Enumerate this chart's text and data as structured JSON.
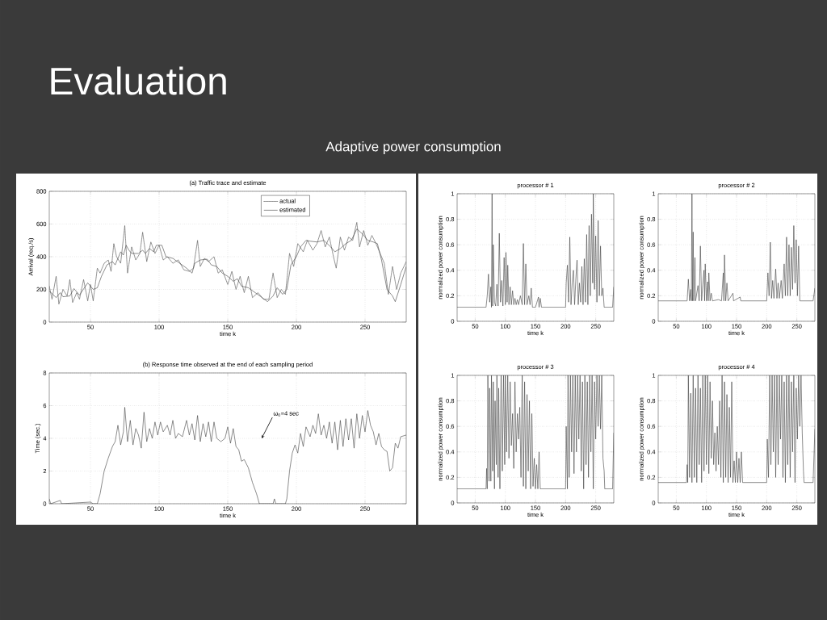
{
  "chart_data": [
    {
      "type": "line",
      "title": "(a) Traffic trace and estimate",
      "xlabel": "time k",
      "ylabel": "Arrival (req./s)",
      "annotations": [
        "Evaluation",
        "Adaptive power consumption"
      ],
      "xlim": [
        20,
        280
      ],
      "ylim": [
        0,
        800
      ],
      "xticks": [
        50,
        100,
        150,
        200,
        250
      ],
      "yticks": [
        0,
        200,
        400,
        600,
        800
      ],
      "grid": true,
      "legend": "top right",
      "series": [
        {
          "name": "actual",
          "color": "#606060",
          "line_style": "dotted",
          "x": [
            20,
            22,
            25,
            27,
            30,
            33,
            35,
            37,
            40,
            42,
            45,
            48,
            50,
            52,
            55,
            57,
            60,
            63,
            65,
            67,
            69,
            72,
            75,
            77,
            80,
            83,
            86,
            88,
            91,
            94,
            97,
            100,
            103,
            106,
            110,
            114,
            118,
            122,
            125,
            128,
            130,
            133,
            136,
            140,
            143,
            146,
            150,
            153,
            156,
            159,
            162,
            165,
            168,
            172,
            176,
            180,
            183,
            186,
            189,
            192,
            195,
            198,
            201,
            205,
            208,
            212,
            215,
            218,
            221,
            224,
            227,
            229,
            232,
            235,
            238,
            241,
            244,
            246,
            249,
            252,
            255,
            258,
            261,
            264,
            267,
            270,
            273,
            276,
            280
          ],
          "values": [
            220,
            140,
            280,
            110,
            200,
            160,
            260,
            120,
            180,
            140,
            260,
            130,
            230,
            130,
            330,
            300,
            360,
            380,
            310,
            480,
            400,
            360,
            590,
            300,
            460,
            380,
            420,
            550,
            370,
            490,
            420,
            470,
            380,
            400,
            360,
            380,
            320,
            310,
            330,
            500,
            340,
            390,
            370,
            400,
            300,
            320,
            230,
            310,
            200,
            280,
            180,
            280,
            150,
            180,
            140,
            140,
            300,
            150,
            200,
            170,
            420,
            340,
            480,
            430,
            500,
            440,
            480,
            560,
            460,
            520,
            400,
            330,
            520,
            440,
            520,
            500,
            610,
            460,
            560,
            470,
            530,
            480,
            420,
            360,
            170,
            340,
            200,
            300,
            370
          ]
        },
        {
          "name": "estimated",
          "color": "#404040",
          "line_style": "solid",
          "x": [
            20,
            25,
            28,
            30,
            35,
            38,
            42,
            48,
            52,
            55,
            58,
            62,
            66,
            68,
            72,
            74,
            76,
            78,
            80,
            85,
            88,
            90,
            93,
            96,
            98,
            102,
            105,
            110,
            115,
            120,
            124,
            126,
            130,
            135,
            138,
            142,
            146,
            150,
            154,
            157,
            160,
            165,
            170,
            175,
            179,
            183,
            186,
            190,
            193,
            196,
            200,
            203,
            207,
            210,
            215,
            220,
            225,
            228,
            232,
            236,
            240,
            244,
            248,
            252,
            256,
            259,
            262,
            266,
            270,
            272,
            276,
            280
          ],
          "values": [
            190,
            150,
            180,
            155,
            160,
            205,
            165,
            240,
            200,
            210,
            280,
            350,
            370,
            350,
            430,
            410,
            470,
            440,
            420,
            420,
            440,
            420,
            450,
            430,
            470,
            470,
            400,
            390,
            360,
            330,
            300,
            360,
            380,
            385,
            350,
            340,
            300,
            280,
            250,
            265,
            220,
            210,
            180,
            150,
            125,
            160,
            210,
            170,
            200,
            350,
            400,
            460,
            500,
            495,
            490,
            500,
            460,
            430,
            450,
            480,
            500,
            570,
            540,
            500,
            490,
            480,
            380,
            200,
            160,
            125,
            230,
            340
          ]
        }
      ]
    },
    {
      "type": "line",
      "title": "(b) Response time observed at the end of each sampling period",
      "xlabel": "time k",
      "ylabel": "Time (sec.)",
      "annotations": [
        "ω$_{0}$=4 sec"
      ],
      "xlim": [
        20,
        280
      ],
      "ylim": [
        0,
        8
      ],
      "xticks": [
        50,
        100,
        150,
        200,
        250
      ],
      "yticks": [
        0,
        2,
        4,
        6,
        8
      ],
      "grid": true,
      "color": "#404040",
      "x": [
        20,
        21,
        28,
        29,
        50,
        52,
        55,
        57,
        60,
        63,
        66,
        68,
        70,
        72,
        74,
        75,
        77,
        79,
        81,
        83,
        85,
        87,
        89,
        91,
        93,
        95,
        97,
        99,
        101,
        103,
        106,
        108,
        110,
        112,
        114,
        117,
        120,
        122,
        124,
        126,
        128,
        130,
        132,
        134,
        136,
        138,
        140,
        142,
        145,
        148,
        150,
        152,
        154,
        156,
        158,
        160,
        162,
        165,
        168,
        171,
        173,
        183,
        184,
        185,
        192,
        193,
        195,
        197,
        199,
        201,
        203,
        205,
        207,
        210,
        212,
        214,
        216,
        218,
        220,
        222,
        224,
        226,
        228,
        230,
        232,
        234,
        236,
        238,
        240,
        242,
        244,
        246,
        248,
        250,
        252,
        254,
        256,
        258,
        260,
        262,
        264,
        266,
        268,
        270,
        272,
        274,
        276,
        280
      ],
      "values": [
        0.3,
        0,
        0.2,
        0,
        0.1,
        0,
        0,
        0.6,
        2,
        2.8,
        3.5,
        3.8,
        4.8,
        3.6,
        4.4,
        5.9,
        3.8,
        5.1,
        3.6,
        4.6,
        4.2,
        3.4,
        5.6,
        3.8,
        4.6,
        4.0,
        5.0,
        4.2,
        5.0,
        4.4,
        4.8,
        4.2,
        5.1,
        4.0,
        4.3,
        4.1,
        5.1,
        4.2,
        4.9,
        3.9,
        5.4,
        3.8,
        4.9,
        4.1,
        5.0,
        3.8,
        5.0,
        4.0,
        3.8,
        4.0,
        4.7,
        3.7,
        4.6,
        3.5,
        3.3,
        2.6,
        2.7,
        2.2,
        1.3,
        0.6,
        0,
        0,
        0.3,
        0,
        0,
        0.3,
        2,
        3.1,
        3.6,
        3.1,
        4.3,
        3.5,
        4.7,
        4.1,
        4.8,
        4.3,
        5.5,
        4.2,
        4.8,
        4.0,
        5.0,
        3.7,
        5.0,
        3.3,
        5.1,
        3.5,
        5.2,
        3.9,
        5.2,
        3.4,
        5.5,
        4.0,
        5.4,
        4.4,
        5.7,
        4.8,
        4.4,
        3.6,
        4.3,
        3.5,
        3.3,
        3.2,
        2.0,
        2.2,
        3.7,
        3.4,
        4.1,
        4.2
      ]
    },
    {
      "type": "line",
      "title": "processor # 1",
      "xlabel": "time k",
      "ylabel": "normalized power consumption",
      "xlim": [
        20,
        280
      ],
      "ylim": [
        0,
        1
      ],
      "xticks": [
        50,
        100,
        150,
        200,
        250
      ],
      "yticks": [
        0,
        0.2,
        0.4,
        0.6,
        0.8,
        1
      ],
      "grid": true,
      "color": "#404040",
      "x": [
        20,
        68,
        70,
        72,
        74,
        76,
        77,
        78,
        79,
        80,
        82,
        84,
        86,
        88,
        90,
        92,
        94,
        96,
        98,
        100,
        101,
        103,
        104,
        106,
        108,
        110,
        112,
        114,
        116,
        118,
        120,
        122,
        125,
        128,
        130,
        132,
        134,
        136,
        139,
        141,
        143,
        145,
        150,
        155,
        156,
        158,
        160,
        200,
        201,
        203,
        205,
        207,
        209,
        211,
        213,
        215,
        217,
        219,
        221,
        223,
        225,
        227,
        229,
        231,
        233,
        235,
        237,
        239,
        241,
        243,
        245,
        246,
        248,
        250,
        252,
        254,
        256,
        258,
        260,
        262,
        264,
        278,
        280
      ],
      "values": [
        0.11,
        0.11,
        0.2,
        0.37,
        0.15,
        0.27,
        0.11,
        1.0,
        0.12,
        0.6,
        0.15,
        0.12,
        0.29,
        0.12,
        0.69,
        0.15,
        0.32,
        0.12,
        0.5,
        0.13,
        0.54,
        0.15,
        0.44,
        0.13,
        0.27,
        0.13,
        0.24,
        0.13,
        0.18,
        0.13,
        0.17,
        0.13,
        0.2,
        0.13,
        0.61,
        0.13,
        0.45,
        0.13,
        0.2,
        0.13,
        0.26,
        0.11,
        0.11,
        0.19,
        0.11,
        0.18,
        0.11,
        0.11,
        0.3,
        0.44,
        0.15,
        0.66,
        0.13,
        0.3,
        0.4,
        0.13,
        0.33,
        0.48,
        0.13,
        0.3,
        0.15,
        0.43,
        0.13,
        0.49,
        0.15,
        0.68,
        0.13,
        0.75,
        0.2,
        0.84,
        0.3,
        1.0,
        0.25,
        0.67,
        0.15,
        0.79,
        0.2,
        0.59,
        0.2,
        0.26,
        0.11,
        0.11,
        0.27
      ]
    },
    {
      "type": "line",
      "title": "processor # 2",
      "xlabel": "time k",
      "ylabel": "normalized power consumption",
      "xlim": [
        20,
        280
      ],
      "ylim": [
        0,
        1
      ],
      "xticks": [
        50,
        100,
        150,
        200,
        250
      ],
      "yticks": [
        0,
        0.2,
        0.4,
        0.6,
        0.8,
        1
      ],
      "grid": true,
      "color": "#404040",
      "x": [
        20,
        68,
        70,
        72,
        74,
        75,
        76,
        77,
        78,
        79,
        81,
        82,
        86,
        88,
        90,
        92,
        94,
        96,
        97,
        98,
        100,
        102,
        103,
        104,
        106,
        108,
        110,
        120,
        125,
        128,
        129,
        130,
        132,
        134,
        136,
        144,
        145,
        156,
        157,
        200,
        202,
        204,
        206,
        208,
        210,
        212,
        215,
        217,
        219,
        221,
        224,
        226,
        229,
        231,
        233,
        235,
        237,
        239,
        241,
        243,
        245,
        247,
        249,
        251,
        253,
        255,
        257,
        277,
        280
      ],
      "values": [
        0.16,
        0.16,
        0.33,
        0.16,
        0.25,
        0.16,
        1.0,
        0.16,
        0.7,
        0.16,
        0.5,
        0.16,
        0.28,
        0.16,
        0.59,
        0.16,
        0.29,
        0.4,
        0.16,
        0.45,
        0.16,
        0.31,
        0.16,
        0.38,
        0.16,
        0.22,
        0.16,
        0.17,
        0.16,
        0.38,
        0.16,
        0.52,
        0.16,
        0.3,
        0.16,
        0.22,
        0.16,
        0.19,
        0.16,
        0.16,
        0.38,
        0.2,
        0.62,
        0.18,
        0.32,
        0.18,
        0.41,
        0.18,
        0.3,
        0.18,
        0.32,
        0.18,
        0.45,
        0.2,
        0.66,
        0.2,
        0.6,
        0.2,
        0.58,
        0.25,
        0.75,
        0.3,
        0.64,
        0.2,
        0.59,
        0.16,
        0.16,
        0.16,
        0.26
      ]
    },
    {
      "type": "line",
      "title": "processor # 3",
      "xlabel": "time k",
      "ylabel": "normalized power consumption",
      "xlim": [
        20,
        280
      ],
      "ylim": [
        0,
        1
      ],
      "xticks": [
        50,
        100,
        150,
        200,
        250
      ],
      "yticks": [
        0,
        0.2,
        0.4,
        0.6,
        0.8,
        1
      ],
      "grid": true,
      "color": "#404040",
      "x": [
        20,
        68,
        69,
        70,
        71,
        73,
        74,
        76,
        77,
        79,
        80,
        82,
        83,
        85,
        86,
        88,
        89,
        91,
        93,
        95,
        97,
        99,
        100,
        102,
        104,
        106,
        108,
        110,
        112,
        114,
        116,
        118,
        120,
        122,
        124,
        126,
        128,
        130,
        132,
        134,
        136,
        138,
        140,
        142,
        144,
        146,
        148,
        150,
        152,
        154,
        156,
        158,
        200,
        201,
        203,
        204,
        206,
        208,
        210,
        212,
        214,
        216,
        218,
        220,
        222,
        224,
        226,
        228,
        230,
        232,
        234,
        236,
        238,
        240,
        242,
        244,
        246,
        248,
        250,
        252,
        254,
        256,
        258,
        260,
        262,
        264,
        265,
        278,
        280
      ],
      "values": [
        0.11,
        0.11,
        0.27,
        0.11,
        1.0,
        0.17,
        0.9,
        0.17,
        1.0,
        0.25,
        0.95,
        0.11,
        0.8,
        0.3,
        1.0,
        0.2,
        0.9,
        0.11,
        1.0,
        0.25,
        1.0,
        0.3,
        1.0,
        0.4,
        1.0,
        0.35,
        0.95,
        0.45,
        0.7,
        0.27,
        0.95,
        0.4,
        0.7,
        0.5,
        0.75,
        0.2,
        1.0,
        0.13,
        0.95,
        0.11,
        0.85,
        0.25,
        0.8,
        0.11,
        0.7,
        0.13,
        0.35,
        0.11,
        0.3,
        0.11,
        0.4,
        0.11,
        0.11,
        0.6,
        0.11,
        1.0,
        0.2,
        1.0,
        0.4,
        1.0,
        0.23,
        1.0,
        0.4,
        1.0,
        0.5,
        1.0,
        0.25,
        0.95,
        0.11,
        1.0,
        0.3,
        0.95,
        0.2,
        1.0,
        0.4,
        1.0,
        0.11,
        0.95,
        0.5,
        1.0,
        0.6,
        1.0,
        0.58,
        1.0,
        0.35,
        0.25,
        0.11,
        0.11,
        0.55
      ]
    },
    {
      "type": "line",
      "title": "processor # 4",
      "xlabel": "time k",
      "ylabel": "normalized power consumption",
      "xlim": [
        20,
        280
      ],
      "ylim": [
        0,
        1
      ],
      "xticks": [
        50,
        100,
        150,
        200,
        250
      ],
      "yticks": [
        0,
        0.2,
        0.4,
        0.6,
        0.8,
        1
      ],
      "grid": true,
      "color": "#404040",
      "x": [
        20,
        67,
        68,
        69,
        70,
        72,
        74,
        76,
        78,
        80,
        82,
        84,
        86,
        88,
        90,
        92,
        94,
        96,
        98,
        100,
        102,
        104,
        106,
        108,
        110,
        112,
        114,
        116,
        118,
        120,
        122,
        124,
        126,
        128,
        130,
        132,
        134,
        136,
        138,
        140,
        142,
        144,
        146,
        148,
        150,
        152,
        154,
        156,
        158,
        160,
        200,
        201,
        203,
        205,
        207,
        209,
        211,
        213,
        215,
        217,
        219,
        221,
        223,
        225,
        227,
        229,
        231,
        233,
        235,
        237,
        239,
        241,
        243,
        245,
        247,
        249,
        251,
        253,
        255,
        257,
        259,
        261,
        262,
        277,
        280
      ],
      "values": [
        0.16,
        0.16,
        0.3,
        0.16,
        1.0,
        0.2,
        0.86,
        0.16,
        1.0,
        0.2,
        0.9,
        0.16,
        1.0,
        0.3,
        0.9,
        0.16,
        1.0,
        0.25,
        1.0,
        0.3,
        1.0,
        0.23,
        0.95,
        0.35,
        0.8,
        0.3,
        0.55,
        0.25,
        0.6,
        0.3,
        0.8,
        0.2,
        1.0,
        0.16,
        0.95,
        0.2,
        0.85,
        0.16,
        0.75,
        0.2,
        0.95,
        0.16,
        0.33,
        0.16,
        0.4,
        0.16,
        0.35,
        0.16,
        0.4,
        0.16,
        0.16,
        0.5,
        0.2,
        1.0,
        0.3,
        1.0,
        0.4,
        1.0,
        0.2,
        1.0,
        0.3,
        1.0,
        0.5,
        1.0,
        0.2,
        0.95,
        0.16,
        1.0,
        0.3,
        1.0,
        0.2,
        0.95,
        0.4,
        1.0,
        0.16,
        0.9,
        0.5,
        1.0,
        0.6,
        1.0,
        0.55,
        0.25,
        0.16,
        0.16,
        0.58
      ]
    }
  ]
}
